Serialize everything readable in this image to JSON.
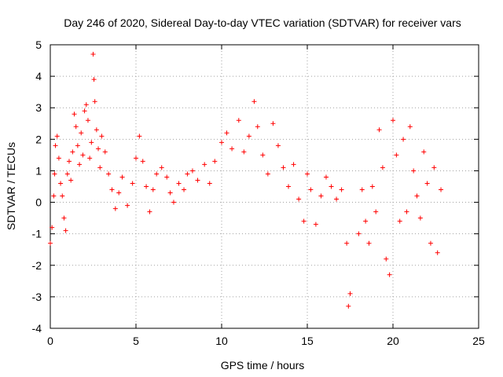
{
  "chart_data": {
    "type": "scatter",
    "title": "Day 246 of 2020, Sidereal Day-to-day VTEC variation (SDTVAR) for receiver vars",
    "xlabel": "GPS time / hours",
    "ylabel": "SDTVAR / TECUs",
    "xlim": [
      0,
      25
    ],
    "ylim": [
      -4,
      5
    ],
    "xticks": [
      0,
      5,
      10,
      15,
      20,
      25
    ],
    "yticks": [
      -4,
      -3,
      -2,
      -1,
      0,
      1,
      2,
      3,
      4,
      5
    ],
    "grid": true,
    "marker": "+",
    "color": "#ff0000",
    "series": [
      {
        "name": "SDTVAR",
        "x": [
          0.0,
          0.1,
          0.2,
          0.25,
          0.3,
          0.4,
          0.5,
          0.6,
          0.7,
          0.8,
          0.9,
          1.0,
          1.1,
          1.2,
          1.3,
          1.4,
          1.5,
          1.6,
          1.7,
          1.8,
          1.9,
          2.0,
          2.1,
          2.2,
          2.3,
          2.4,
          2.5,
          2.55,
          2.6,
          2.7,
          2.8,
          2.9,
          3.0,
          3.2,
          3.4,
          3.6,
          3.8,
          4.0,
          4.2,
          4.5,
          4.8,
          5.0,
          5.2,
          5.4,
          5.6,
          5.8,
          6.0,
          6.2,
          6.5,
          6.8,
          7.0,
          7.2,
          7.5,
          7.8,
          8.0,
          8.3,
          8.6,
          9.0,
          9.3,
          9.6,
          10.0,
          10.3,
          10.6,
          11.0,
          11.3,
          11.6,
          11.9,
          12.1,
          12.4,
          12.7,
          13.0,
          13.3,
          13.6,
          13.9,
          14.2,
          14.5,
          14.8,
          15.0,
          15.2,
          15.5,
          15.8,
          16.1,
          16.4,
          16.7,
          17.0,
          17.3,
          17.4,
          17.5,
          18.0,
          18.2,
          18.4,
          18.6,
          18.8,
          19.0,
          19.2,
          19.4,
          19.6,
          19.8,
          20.0,
          20.2,
          20.4,
          20.6,
          20.8,
          21.0,
          21.2,
          21.4,
          21.6,
          21.8,
          22.0,
          22.2,
          22.4,
          22.6,
          22.8
        ],
        "y": [
          -1.3,
          -0.8,
          0.2,
          0.9,
          1.8,
          2.1,
          1.4,
          0.6,
          0.2,
          -0.5,
          -0.9,
          0.9,
          1.3,
          0.7,
          1.6,
          2.8,
          2.4,
          1.8,
          1.2,
          2.2,
          1.5,
          2.9,
          3.1,
          2.6,
          1.4,
          1.9,
          4.7,
          3.9,
          3.2,
          2.3,
          1.7,
          1.1,
          2.1,
          1.6,
          0.9,
          0.4,
          -0.2,
          0.3,
          0.8,
          -0.1,
          0.6,
          1.4,
          2.1,
          1.3,
          0.5,
          -0.3,
          0.4,
          0.9,
          1.1,
          0.8,
          0.3,
          0.0,
          0.6,
          0.4,
          0.9,
          1.0,
          0.7,
          1.2,
          0.6,
          1.3,
          1.9,
          2.2,
          1.7,
          2.6,
          1.6,
          2.1,
          3.2,
          2.4,
          1.5,
          0.9,
          2.5,
          1.8,
          1.1,
          0.5,
          1.2,
          0.1,
          -0.6,
          0.9,
          0.4,
          -0.7,
          0.2,
          0.8,
          0.5,
          0.1,
          0.4,
          -1.3,
          -3.3,
          -2.9,
          -1.0,
          0.4,
          -0.6,
          -1.3,
          0.5,
          -0.3,
          2.3,
          1.1,
          -1.8,
          -2.3,
          2.6,
          1.5,
          -0.6,
          2.0,
          -0.3,
          2.4,
          1.0,
          0.2,
          -0.5,
          1.6,
          0.6,
          -1.3,
          1.1,
          -1.6,
          0.4
        ]
      }
    ]
  }
}
